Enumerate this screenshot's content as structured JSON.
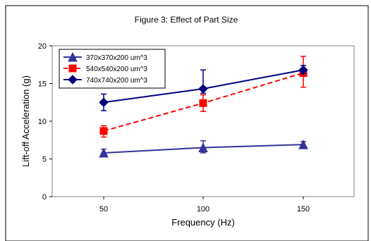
{
  "chart_data": {
    "type": "line",
    "title": "Figure 3: Effect of Part Size",
    "xlabel": "Frequency (Hz)",
    "ylabel": "Lift-off Acceleration (g)",
    "x_scale": "categorical",
    "categories": [
      "50",
      "100",
      "150"
    ],
    "x_ticks": [
      "50",
      "100",
      "150"
    ],
    "y_ticks": [
      "0",
      "5",
      "10",
      "15",
      "20"
    ],
    "ylim": [
      0,
      20
    ],
    "grid": false,
    "legend_placement": "top-left",
    "series": [
      {
        "name": "370x370x200 um^3",
        "color": "#333399",
        "marker": "triangle",
        "line_style": "solid",
        "values": [
          5.8,
          6.5,
          6.9
        ],
        "error_low": [
          5.4,
          5.8,
          6.6
        ],
        "error_high": [
          6.3,
          7.4,
          7.3
        ]
      },
      {
        "name": "540x540x200 um^3",
        "color": "#ff0000",
        "marker": "square",
        "line_style": "dashed",
        "values": [
          8.7,
          12.4,
          16.4
        ],
        "error_low": [
          7.9,
          11.3,
          14.5
        ],
        "error_high": [
          9.4,
          13.5,
          18.6
        ]
      },
      {
        "name": "740x740x200 um^3",
        "color": "#000080",
        "marker": "diamond",
        "line_style": "solid",
        "values": [
          12.5,
          14.3,
          16.8
        ],
        "error_low": [
          11.4,
          13.7,
          16.3
        ],
        "error_high": [
          13.6,
          16.8,
          17.4
        ]
      }
    ]
  }
}
